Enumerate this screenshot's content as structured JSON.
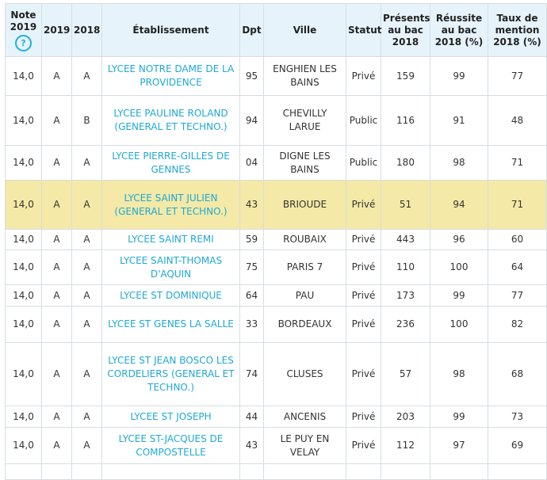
{
  "headers": {
    "note_l1": "Note",
    "note_l2": "2019",
    "help": "?",
    "y2019": "2019",
    "y2018": "2018",
    "etab": "Établissement",
    "dpt": "Dpt",
    "ville": "Ville",
    "statut": "Statut",
    "presents_l1": "Présents",
    "presents_l2": "au bac",
    "presents_l3": "2018",
    "reussite_l1": "Réussite",
    "reussite_l2": "au bac",
    "reussite_l3": "2018 (%)",
    "mention_l1": "Taux de",
    "mention_l2": "mention",
    "mention_l3": "2018 (%)"
  },
  "rows": [
    {
      "note": "14,0",
      "r2019": "A",
      "r2018": "A",
      "etab": "LYCEE NOTRE DAME DE LA PROVIDENCE",
      "dpt": "95",
      "ville": "ENGHIEN LES BAINS",
      "statut": "Privé",
      "presents": "159",
      "reussite": "99",
      "mention": "77"
    },
    {
      "note": "14,0",
      "r2019": "A",
      "r2018": "B",
      "etab": "LYCEE PAULINE ROLAND (GENERAL ET TECHNO.)",
      "dpt": "94",
      "ville": "CHEVILLY LARUE",
      "statut": "Public",
      "presents": "116",
      "reussite": "91",
      "mention": "48"
    },
    {
      "note": "14,0",
      "r2019": "A",
      "r2018": "A",
      "etab": "LYCEE PIERRE-GILLES DE GENNES",
      "dpt": "04",
      "ville": "DIGNE LES BAINS",
      "statut": "Public",
      "presents": "180",
      "reussite": "98",
      "mention": "71"
    },
    {
      "note": "14,0",
      "r2019": "A",
      "r2018": "A",
      "etab": "LYCEE SAINT JULIEN (GENERAL ET TECHNO.)",
      "dpt": "43",
      "ville": "BRIOUDE",
      "statut": "Privé",
      "presents": "51",
      "reussite": "94",
      "mention": "71"
    },
    {
      "note": "14,0",
      "r2019": "A",
      "r2018": "A",
      "etab": "LYCEE SAINT REMI",
      "dpt": "59",
      "ville": "ROUBAIX",
      "statut": "Privé",
      "presents": "443",
      "reussite": "96",
      "mention": "60"
    },
    {
      "note": "14,0",
      "r2019": "A",
      "r2018": "A",
      "etab": "LYCEE SAINT-THOMAS D'AQUIN",
      "dpt": "75",
      "ville": "PARIS 7",
      "statut": "Privé",
      "presents": "110",
      "reussite": "100",
      "mention": "64"
    },
    {
      "note": "14,0",
      "r2019": "A",
      "r2018": "A",
      "etab": "LYCEE ST DOMINIQUE",
      "dpt": "64",
      "ville": "PAU",
      "statut": "Privé",
      "presents": "173",
      "reussite": "99",
      "mention": "77"
    },
    {
      "note": "14,0",
      "r2019": "A",
      "r2018": "A",
      "etab": "LYCEE ST GENES LA SALLE",
      "dpt": "33",
      "ville": "BORDEAUX",
      "statut": "Privé",
      "presents": "236",
      "reussite": "100",
      "mention": "82"
    },
    {
      "note": "14,0",
      "r2019": "A",
      "r2018": "A",
      "etab": "LYCEE ST JEAN BOSCO LES CORDELIERS (GENERAL ET TECHNO.)",
      "dpt": "74",
      "ville": "CLUSES",
      "statut": "Privé",
      "presents": "57",
      "reussite": "98",
      "mention": "68"
    },
    {
      "note": "14,0",
      "r2019": "A",
      "r2018": "A",
      "etab": "LYCEE ST JOSEPH",
      "dpt": "44",
      "ville": "ANCENIS",
      "statut": "Privé",
      "presents": "203",
      "reussite": "99",
      "mention": "73"
    },
    {
      "note": "14,0",
      "r2019": "A",
      "r2018": "A",
      "etab": "LYCEE ST-JACQUES DE COMPOSTELLE",
      "dpt": "43",
      "ville": "LE PUY EN VELAY",
      "statut": "Privé",
      "presents": "112",
      "reussite": "97",
      "mention": "69"
    }
  ],
  "highlight_color": "#f4e9a6",
  "link_color": "#1fa8d6"
}
